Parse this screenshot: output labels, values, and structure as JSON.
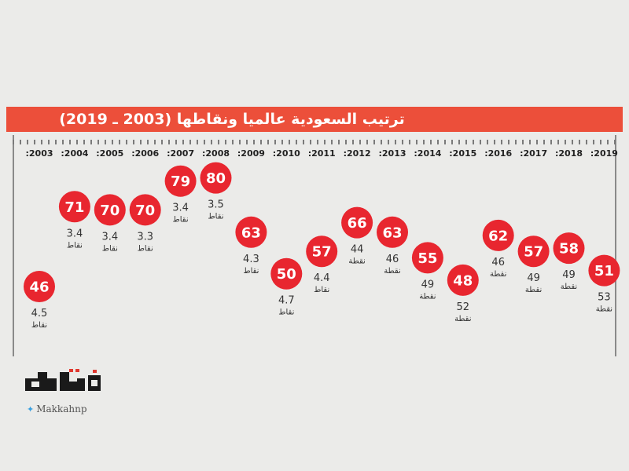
{
  "chart_data": {
    "type": "scatter",
    "title": "ترتيب السعودية عالميا ونقاطها (2003 ـ 2019)",
    "years": [
      ":2003",
      ":2004",
      ":2005",
      ":2006",
      ":2007",
      ":2008",
      ":2009",
      ":2010",
      ":2011",
      ":2012",
      ":2013",
      ":2014",
      ":2015",
      ":2016",
      ":2017",
      ":2018",
      ":2019"
    ],
    "ranks": [
      46,
      71,
      70,
      70,
      79,
      80,
      63,
      50,
      57,
      66,
      63,
      55,
      48,
      62,
      57,
      58,
      51
    ],
    "scores": [
      "4.5",
      "3.4",
      "3.4",
      "3.3",
      "3.4",
      "3.5",
      "4.3",
      "4.7",
      "4.4",
      "44",
      "46",
      "49",
      "52",
      "46",
      "49",
      "49",
      "53"
    ],
    "units": [
      "نقاط",
      "نقاط",
      "نقاط",
      "نقاط",
      "نقاط",
      "نقاط",
      "نقاط",
      "نقاط",
      "نقاط",
      "نقطة",
      "نقطة",
      "نقطة",
      "نقطة",
      "نقطة",
      "نقطة",
      "نقطة",
      "نقطة"
    ],
    "marker_color": "#e8262f",
    "accent_color": "#ec4f3a"
  },
  "logo": {
    "handle": "Makkahnp"
  }
}
